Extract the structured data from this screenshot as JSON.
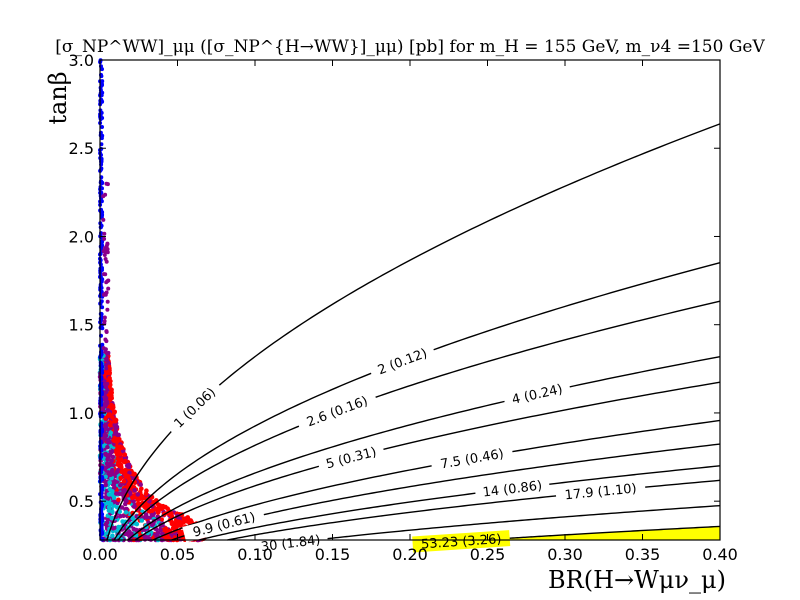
{
  "chart_data": {
    "type": "contour",
    "title": "[σ_NP^WW]_μμ ([σ_NP^{H→WW}]_μμ) [pb] for m_H = 155 GeV, m_ν4 =150 GeV",
    "xlabel": "BR(H→Wμν_μ)",
    "ylabel": "tanβ",
    "xlim": [
      0.0,
      0.4
    ],
    "ylim": [
      0.28,
      3.0
    ],
    "x_ticks": [
      "0.00",
      "0.05",
      "0.10",
      "0.15",
      "0.20",
      "0.25",
      "0.30",
      "0.35",
      "0.40"
    ],
    "y_ticks": [
      "0.5",
      "1.0",
      "1.5",
      "2.0",
      "2.5",
      "3.0"
    ],
    "grid": false,
    "contours": [
      {
        "label": "1 (0.06)",
        "k": 0.05747
      },
      {
        "label": "2 (0.12)",
        "k": 0.11667
      },
      {
        "label": "2.6 (0.16)",
        "k": 0.15
      },
      {
        "label": "4 (0.24)",
        "k": 0.23
      },
      {
        "label": "5 (0.31)",
        "k": 0.2902
      },
      {
        "label": "7.5 (0.46)",
        "k": 0.4365
      },
      {
        "label": "9.9 (0.61)",
        "k": 0.5895
      },
      {
        "label": "14 (0.86)",
        "k": 0.8155
      },
      {
        "label": "17.9 (1.10)",
        "k": 1.0475
      },
      {
        "label": "30 (1.84)",
        "k": 1.775
      },
      {
        "label": "53.23 (3.26)",
        "k": 3.14
      }
    ],
    "excluded_region": {
      "color": "#ffff00",
      "bound": "53.23 (3.26)"
    },
    "scatter_series": [
      {
        "color": "#ff0000"
      },
      {
        "color": "#8b008b"
      },
      {
        "color": "#00bcd4"
      },
      {
        "color": "#0000ff"
      }
    ]
  }
}
